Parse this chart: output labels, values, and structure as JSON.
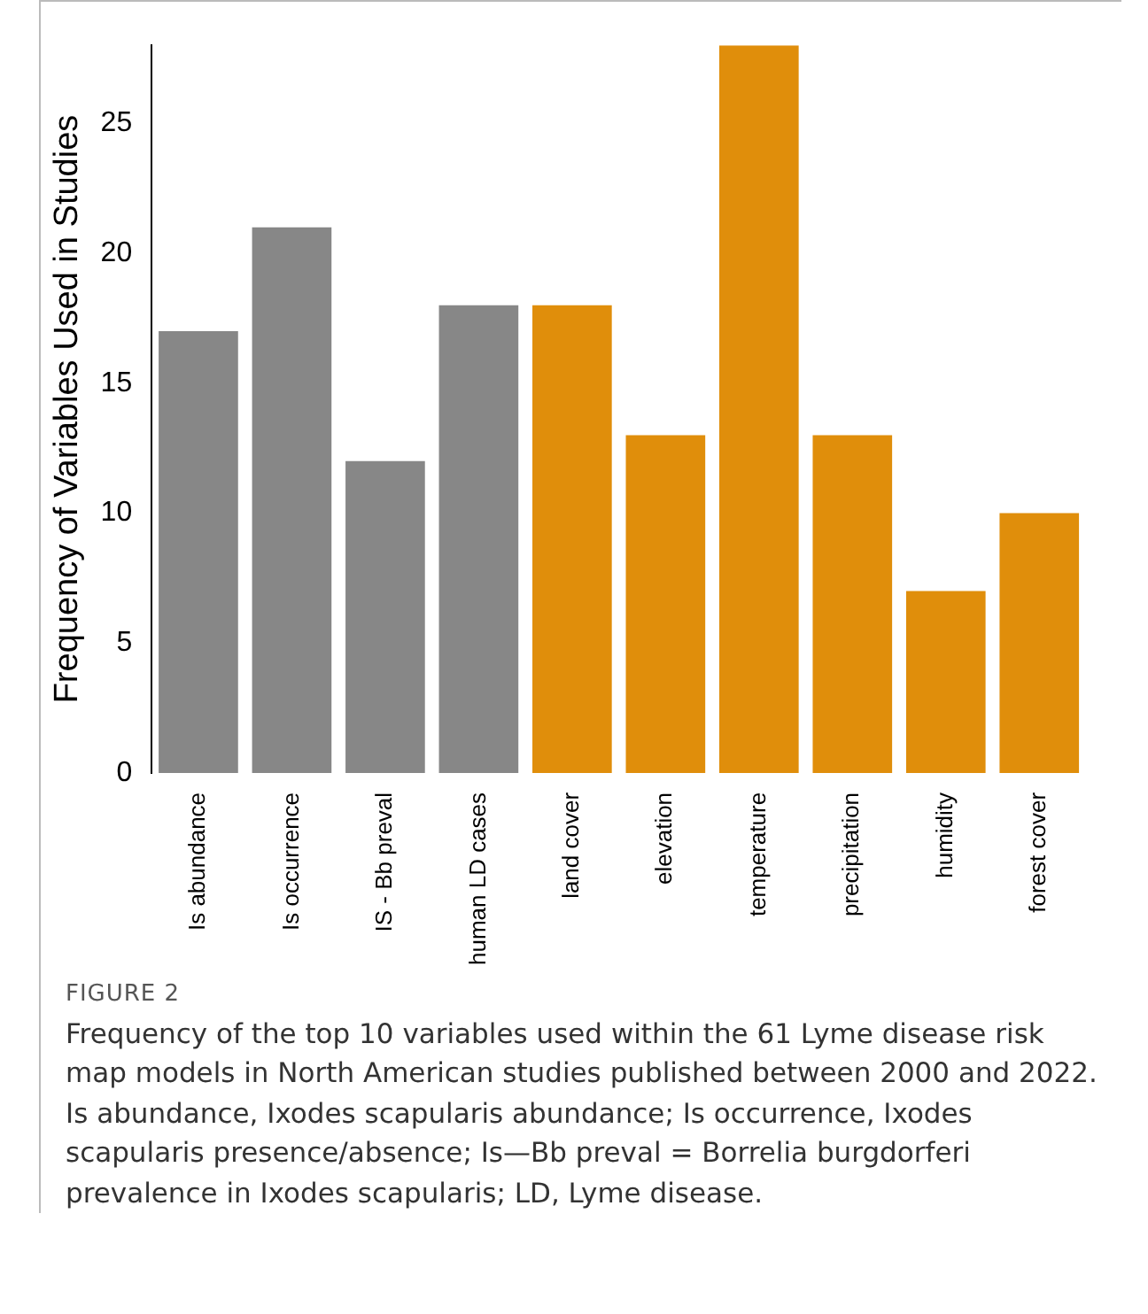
{
  "chart_data": {
    "type": "bar",
    "title": "FIGURE 2",
    "ylabel": "Frequency of Variables Used in Studies",
    "categories": [
      "Is abundance",
      "Is occurrence",
      "IS - Bb preval",
      "human LD cases",
      "land cover",
      "elevation",
      "temperature",
      "precipitation",
      "humidity",
      "forest cover"
    ],
    "values": [
      17,
      21,
      12,
      18,
      18,
      13,
      28,
      13,
      7,
      10
    ],
    "colors": [
      "#878787",
      "#878787",
      "#878787",
      "#878787",
      "#e08e0b",
      "#e08e0b",
      "#e08e0b",
      "#e08e0b",
      "#e08e0b",
      "#e08e0b"
    ],
    "ylim": [
      0,
      28
    ],
    "yticks": [
      0,
      5,
      10,
      15,
      20,
      25
    ],
    "grid": false,
    "legend": false,
    "annotations": [
      "Frequency of the top 10 variables used within the 61 Lyme disease risk map models in North American studies published between 2000 and 2022. Is abundance, Ixodes scapularis abundance; Is occurrence, Ixodes scapularis presence/absence; Is—Bb preval = Borrelia burgdorferi prevalence in Ixodes scapularis; LD, Lyme disease."
    ]
  }
}
